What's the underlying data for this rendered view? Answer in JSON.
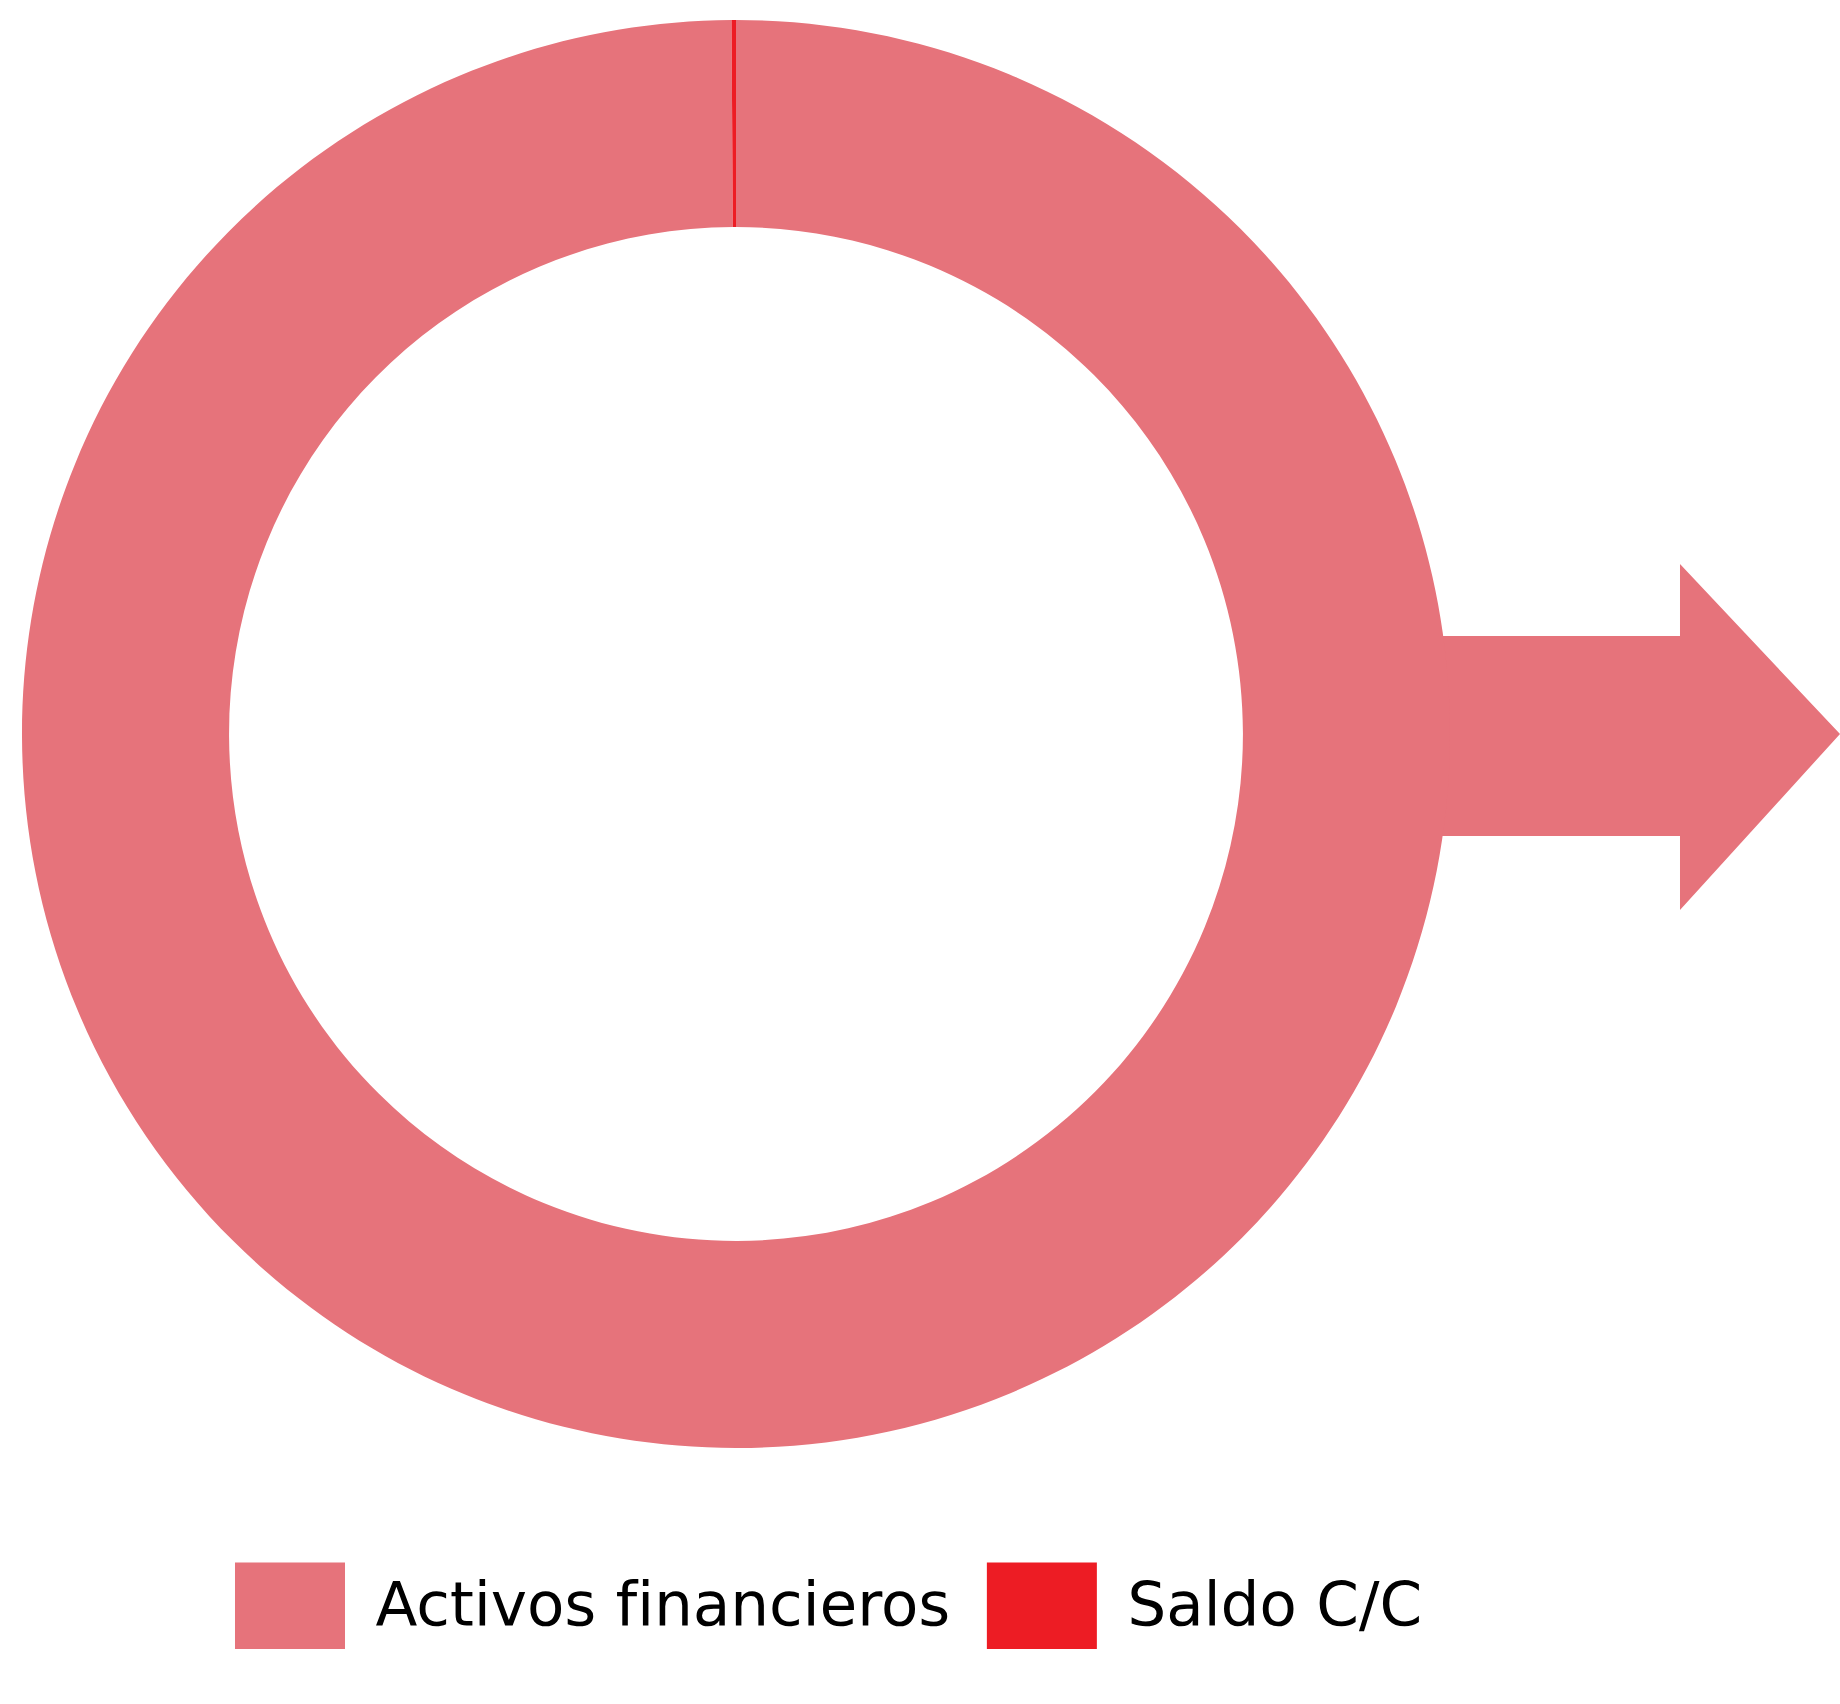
{
  "chart_data": {
    "type": "donut",
    "categories": [
      "Activos financieros",
      "Saldo C/C"
    ],
    "values": [
      99.9,
      0.1
    ],
    "colors": [
      "#e6737b",
      "#ed1c24"
    ],
    "legend": "bottom"
  }
}
